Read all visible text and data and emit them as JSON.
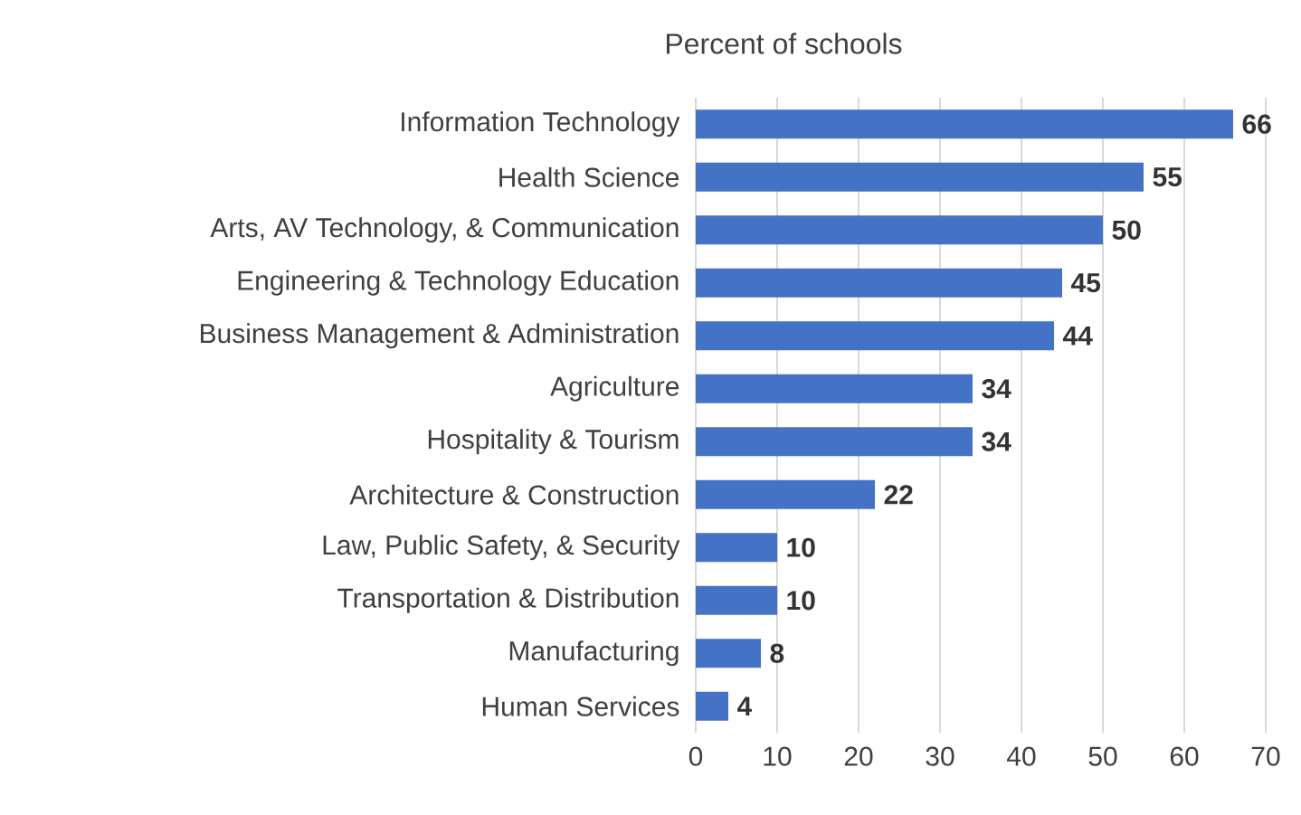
{
  "chart_data": {
    "type": "bar",
    "orientation": "horizontal",
    "title": "Percent of schools",
    "categories": [
      "Information Technology",
      "Health Science",
      "Arts, AV Technology, & Communication",
      "Engineering & Technology Education",
      "Business Management & Administration",
      "Agriculture",
      "Hospitality & Tourism",
      "Architecture & Construction",
      "Law, Public Safety, & Security",
      "Transportation & Distribution",
      "Manufacturing",
      "Human Services"
    ],
    "values": [
      66,
      55,
      50,
      45,
      44,
      34,
      34,
      22,
      10,
      10,
      8,
      4
    ],
    "color": "#4472c4",
    "xlim": [
      0,
      70
    ],
    "xticks": [
      0,
      10,
      20,
      30,
      40,
      50,
      60,
      70
    ],
    "grid": "x",
    "data_labels": true
  }
}
